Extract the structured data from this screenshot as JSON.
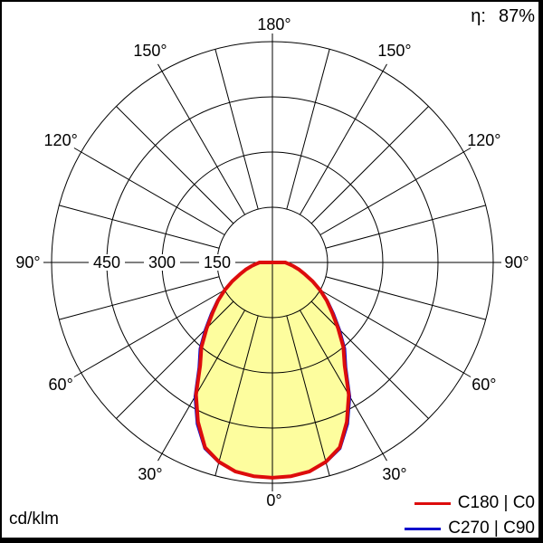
{
  "header": {
    "efficiency_label": "η:",
    "efficiency_value": "87%"
  },
  "footer": {
    "unit_label": "cd/klm"
  },
  "legend": [
    {
      "label": "C180 | C0",
      "color": "#dd0c0c"
    },
    {
      "label": "C270 | C90",
      "color": "#0b0bcc"
    }
  ],
  "chart_data": {
    "type": "polar",
    "subtype": "luminous-intensity-distribution",
    "unit": "cd/klm",
    "efficiency_percent": 87,
    "rmax": 600,
    "radial_circles": [
      150,
      300,
      450,
      600
    ],
    "radial_axis_labels": [
      "450",
      "300",
      "150"
    ],
    "angle_grid_step_deg": 15,
    "angle_labels": [
      "0°",
      "30°",
      "60°",
      "90°",
      "120°",
      "150°",
      "180°"
    ],
    "grid_color": "#000000",
    "beam_fill_color": "#fdfd9e",
    "symmetric": true,
    "series": [
      {
        "name": "C270 | C90",
        "color": "#0b0bcc",
        "angles_deg": [
          0,
          5,
          10,
          15,
          20,
          25,
          30,
          35,
          40,
          45,
          50,
          55,
          60,
          65,
          70,
          75,
          80,
          85,
          90
        ],
        "values": [
          585,
          583,
          577,
          562,
          538,
          484,
          421,
          348,
          306,
          258,
          217,
          183,
          151,
          121,
          95,
          75,
          58,
          44,
          35
        ]
      },
      {
        "name": "C180 | C0",
        "color": "#dd0c0c",
        "angles_deg": [
          0,
          5,
          10,
          15,
          20,
          25,
          30,
          35,
          40,
          45,
          50,
          55,
          60,
          65,
          70,
          75,
          80,
          85,
          90
        ],
        "values": [
          585,
          583,
          577,
          561,
          535,
          478,
          415,
          342,
          300,
          252,
          212,
          180,
          149,
          120,
          94,
          75,
          58,
          44,
          35
        ]
      }
    ]
  }
}
